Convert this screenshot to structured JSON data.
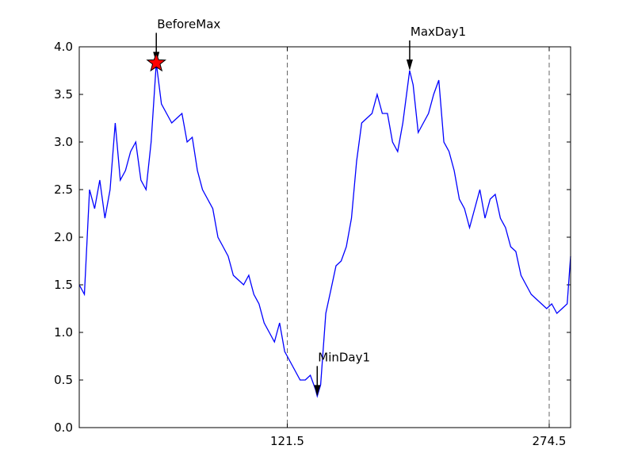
{
  "chart_data": {
    "type": "line",
    "x": [
      0,
      3,
      6,
      9,
      12,
      15,
      18,
      21,
      24,
      27,
      30,
      33,
      36,
      39,
      42,
      45,
      48,
      51,
      54,
      57,
      60,
      63,
      66,
      69,
      72,
      75,
      78,
      81,
      84,
      87,
      90,
      93,
      96,
      99,
      102,
      105,
      108,
      111,
      114,
      117,
      120,
      123,
      126,
      129,
      132,
      135,
      138,
      139,
      141,
      144,
      147,
      150,
      153,
      156,
      159,
      162,
      165,
      168,
      171,
      174,
      177,
      180,
      183,
      186,
      189,
      193,
      195,
      198,
      201,
      204,
      207,
      210,
      213,
      216,
      219,
      222,
      225,
      228,
      231,
      234,
      237,
      240,
      243,
      246,
      249,
      252,
      255,
      258,
      261,
      264,
      267,
      270,
      273,
      276,
      279,
      282,
      285,
      287
    ],
    "series": [
      {
        "color": "#0000ff",
        "values": [
          1.5,
          1.4,
          2.5,
          2.3,
          2.6,
          2.2,
          2.5,
          3.2,
          2.6,
          2.7,
          2.9,
          3.0,
          2.6,
          2.5,
          3.0,
          3.83,
          3.4,
          3.3,
          3.2,
          3.25,
          3.3,
          3.0,
          3.05,
          2.7,
          2.5,
          2.4,
          2.3,
          2.0,
          1.9,
          1.8,
          1.6,
          1.55,
          1.5,
          1.6,
          1.4,
          1.3,
          1.1,
          1.0,
          0.9,
          1.1,
          0.8,
          0.7,
          0.6,
          0.5,
          0.5,
          0.55,
          0.4,
          0.33,
          0.45,
          1.2,
          1.45,
          1.7,
          1.75,
          1.9,
          2.2,
          2.8,
          3.2,
          3.25,
          3.3,
          3.5,
          3.3,
          3.3,
          3.0,
          2.9,
          3.2,
          3.75,
          3.6,
          3.1,
          3.2,
          3.3,
          3.5,
          3.65,
          3.0,
          2.9,
          2.7,
          2.4,
          2.3,
          2.1,
          2.3,
          2.5,
          2.2,
          2.4,
          2.45,
          2.2,
          2.1,
          1.9,
          1.85,
          1.6,
          1.5,
          1.4,
          1.35,
          1.3,
          1.25,
          1.3,
          1.2,
          1.25,
          1.3,
          1.8
        ]
      }
    ],
    "xlim": [
      0,
      287
    ],
    "xticks": [
      121.5,
      274.5
    ],
    "xgrid": true,
    "ylim": [
      0,
      4
    ],
    "yticks": [
      {
        "value": 0,
        "label": "0.0"
      },
      0.5,
      {
        "value": 1,
        "label": "1.0"
      },
      1.5,
      {
        "value": 2,
        "label": "2.0"
      },
      2.5,
      {
        "value": 3,
        "label": "3.0"
      },
      3.5,
      {
        "value": 4,
        "label": "4.0"
      }
    ],
    "annotations": [
      {
        "text": "BeforeMax",
        "x": 45,
        "y": 3.83,
        "marker": "star",
        "marker_color": "#ff0000"
      },
      {
        "text": "MaxDay1",
        "x": 193,
        "y": 3.75
      },
      {
        "text": "MinDay1",
        "x": 139,
        "y": 0.33
      }
    ]
  }
}
